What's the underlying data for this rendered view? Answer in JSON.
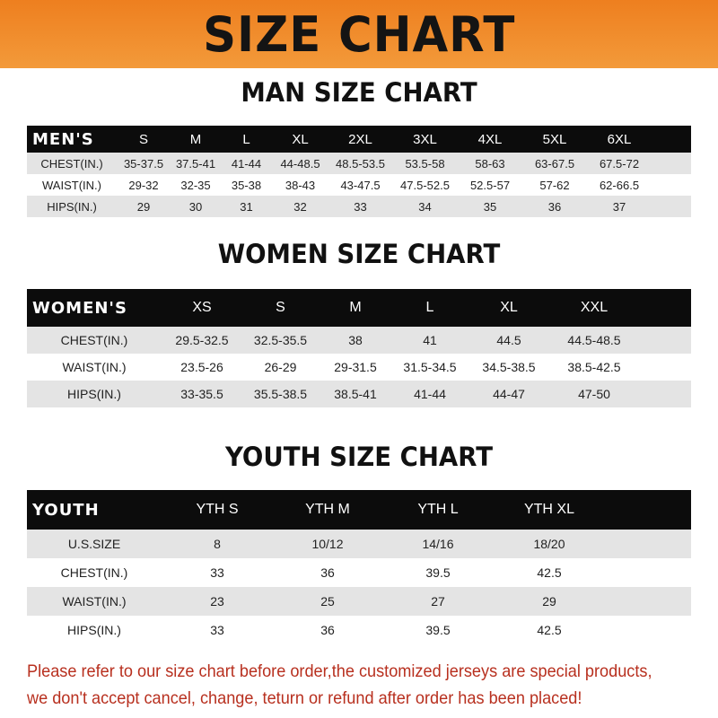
{
  "banner": {
    "title": "SIZE CHART",
    "color": "#ee7f1f"
  },
  "men": {
    "title": "MAN SIZE CHART",
    "header": [
      "MEN'S",
      "S",
      "M",
      "L",
      "XL",
      "2XL",
      "3XL",
      "4XL",
      "5XL",
      "6XL"
    ],
    "rows": [
      [
        "CHEST(IN.)",
        "35-37.5",
        "37.5-41",
        "41-44",
        "44-48.5",
        "48.5-53.5",
        "53.5-58",
        "58-63",
        "63-67.5",
        "67.5-72"
      ],
      [
        "WAIST(IN.)",
        "29-32",
        "32-35",
        "35-38",
        "38-43",
        "43-47.5",
        "47.5-52.5",
        "52.5-57",
        "57-62",
        "62-66.5"
      ],
      [
        "HIPS(IN.)",
        "29",
        "30",
        "31",
        "32",
        "33",
        "34",
        "35",
        "36",
        "37"
      ]
    ]
  },
  "women": {
    "title": "WOMEN SIZE CHART",
    "header": [
      "WOMEN'S",
      "XS",
      "S",
      "M",
      "L",
      "XL",
      "XXL"
    ],
    "rows": [
      [
        "CHEST(IN.)",
        "29.5-32.5",
        "32.5-35.5",
        "38",
        "41",
        "44.5",
        "44.5-48.5"
      ],
      [
        "WAIST(IN.)",
        "23.5-26",
        "26-29",
        "29-31.5",
        "31.5-34.5",
        "34.5-38.5",
        "38.5-42.5"
      ],
      [
        "HIPS(IN.)",
        "33-35.5",
        "35.5-38.5",
        "38.5-41",
        "41-44",
        "44-47",
        "47-50"
      ]
    ]
  },
  "youth": {
    "title": "YOUTH SIZE CHART",
    "header": [
      "YOUTH",
      "YTH S",
      "YTH M",
      "YTH L",
      "YTH XL"
    ],
    "rows": [
      [
        "U.S.SIZE",
        "8",
        "10/12",
        "14/16",
        "18/20"
      ],
      [
        "CHEST(IN.)",
        "33",
        "36",
        "39.5",
        "42.5"
      ],
      [
        "WAIST(IN.)",
        "23",
        "25",
        "27",
        "29"
      ],
      [
        "HIPS(IN.)",
        "33",
        "36",
        "39.5",
        "42.5"
      ]
    ]
  },
  "notice": {
    "line1": "Please refer to our size chart before order,the customized jerseys are special products,",
    "line2": "we don't accept cancel, change, teturn or refund after order has been placed!",
    "color": "#b8301f"
  }
}
